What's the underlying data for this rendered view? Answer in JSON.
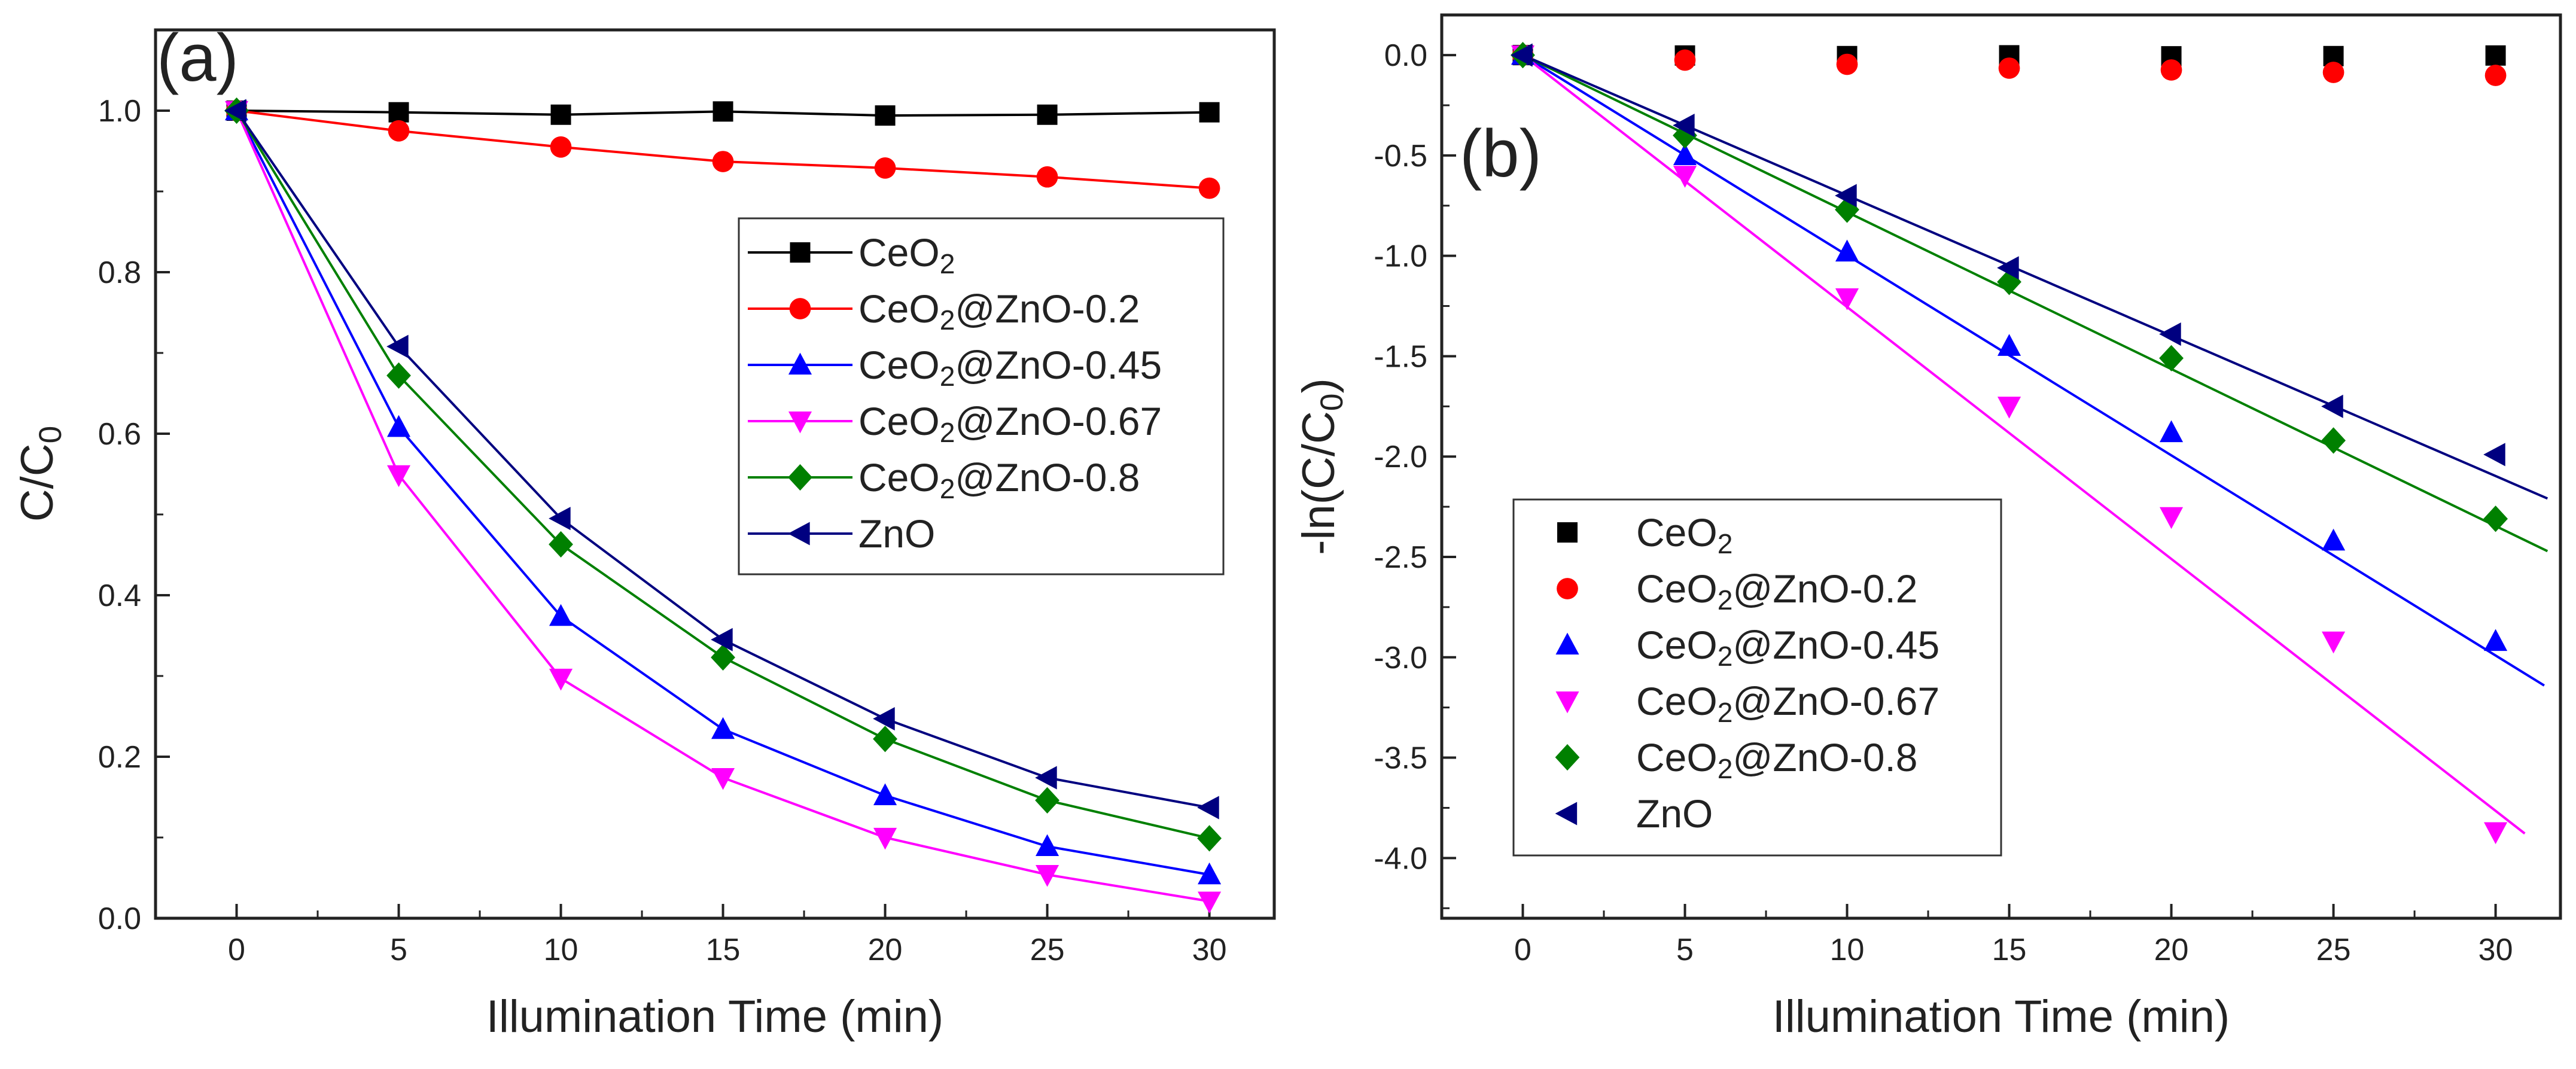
{
  "colors": {
    "CeO2": "#000000",
    "CeO2@ZnO-0.2": "#ff0000",
    "CeO2@ZnO-0.45": "#0000ff",
    "CeO2@ZnO-0.67": "#ff00ff",
    "CeO2@ZnO-0.8": "#008000",
    "ZnO": "#000080"
  },
  "chart_data": [
    {
      "type": "line",
      "panel_label": "(a)",
      "xlabel": "Illumination Time (min)",
      "ylabel": "C/C",
      "ylabel_sub": "0",
      "xlim": [
        -2.5,
        32
      ],
      "ylim": [
        0.0,
        1.1
      ],
      "xticks": [
        0,
        5,
        10,
        15,
        20,
        25,
        30
      ],
      "xtick_labels": [
        "0",
        "5",
        "10",
        "15",
        "20",
        "25",
        "30"
      ],
      "yticks": [
        0.0,
        0.2,
        0.4,
        0.6,
        0.8,
        1.0
      ],
      "ytick_labels": [
        "0.0",
        "0.2",
        "0.4",
        "0.6",
        "0.8",
        "1.0"
      ],
      "legend_position": "center-right",
      "x": [
        0,
        5,
        10,
        15,
        20,
        25,
        30
      ],
      "series": [
        {
          "name": "CeO2",
          "label_main": "CeO",
          "label_sub": "2",
          "label_rest": "",
          "marker": "square",
          "color_key": "CeO2",
          "line": "connect",
          "values": [
            1.0,
            0.998,
            0.995,
            0.999,
            0.994,
            0.995,
            0.998
          ]
        },
        {
          "name": "CeO2@ZnO-0.2",
          "label_main": "CeO",
          "label_sub": "2",
          "label_rest": "@ZnO-0.2",
          "marker": "circle",
          "color_key": "CeO2@ZnO-0.2",
          "line": "connect",
          "values": [
            1.0,
            0.975,
            0.955,
            0.937,
            0.929,
            0.918,
            0.904
          ]
        },
        {
          "name": "CeO2@ZnO-0.45",
          "label_main": "CeO",
          "label_sub": "2",
          "label_rest": "@ZnO-0.45",
          "marker": "triangle-up",
          "color_key": "CeO2@ZnO-0.45",
          "line": "connect",
          "values": [
            1.0,
            0.608,
            0.374,
            0.234,
            0.152,
            0.089,
            0.054
          ]
        },
        {
          "name": "CeO2@ZnO-0.67",
          "label_main": "CeO",
          "label_sub": "2",
          "label_rest": "@ZnO-0.67",
          "marker": "triangle-down",
          "color_key": "CeO2@ZnO-0.67",
          "line": "connect",
          "values": [
            1.0,
            0.549,
            0.297,
            0.174,
            0.1,
            0.054,
            0.021
          ]
        },
        {
          "name": "CeO2@ZnO-0.8",
          "label_main": "CeO",
          "label_sub": "2",
          "label_rest": "@ZnO-0.8",
          "marker": "diamond",
          "color_key": "CeO2@ZnO-0.8",
          "line": "connect",
          "values": [
            1.0,
            0.672,
            0.463,
            0.323,
            0.222,
            0.146,
            0.099
          ]
        },
        {
          "name": "ZnO",
          "label_main": "ZnO",
          "label_sub": "",
          "label_rest": "",
          "marker": "triangle-left",
          "color_key": "ZnO",
          "line": "connect",
          "values": [
            1.0,
            0.708,
            0.495,
            0.345,
            0.247,
            0.174,
            0.137
          ]
        }
      ]
    },
    {
      "type": "scatter",
      "panel_label": "(b)",
      "xlabel": "Illumination Time (min)",
      "ylabel": "-ln(C/C",
      "ylabel_sub": "0",
      "ylabel_end": ")",
      "xlim": [
        -2.5,
        32
      ],
      "ylim": [
        -4.3,
        0.2
      ],
      "xticks": [
        0,
        5,
        10,
        15,
        20,
        25,
        30
      ],
      "xtick_labels": [
        "0",
        "5",
        "10",
        "15",
        "20",
        "25",
        "30"
      ],
      "yticks": [
        0.0,
        -0.5,
        -1.0,
        -1.5,
        -2.0,
        -2.5,
        -3.0,
        -3.5,
        -4.0
      ],
      "ytick_labels": [
        "0.0",
        "-0.5",
        "-1.0",
        "-1.5",
        "-2.0",
        "-2.5",
        "-3.0",
        "-3.5",
        "-4.0"
      ],
      "legend_position": "lower-left",
      "x": [
        0,
        5,
        10,
        15,
        20,
        25,
        30
      ],
      "series": [
        {
          "name": "CeO2",
          "label_main": "CeO",
          "label_sub": "2",
          "label_rest": "",
          "marker": "square",
          "color_key": "CeO2",
          "values": [
            0.0,
            -0.002,
            -0.005,
            -0.001,
            -0.006,
            -0.005,
            -0.002
          ],
          "fit": null
        },
        {
          "name": "CeO2@ZnO-0.2",
          "label_main": "CeO",
          "label_sub": "2",
          "label_rest": "@ZnO-0.2",
          "marker": "circle",
          "color_key": "CeO2@ZnO-0.2",
          "values": [
            0.0,
            -0.025,
            -0.046,
            -0.065,
            -0.074,
            -0.086,
            -0.101
          ],
          "fit": null
        },
        {
          "name": "CeO2@ZnO-0.45",
          "label_main": "CeO",
          "label_sub": "2",
          "label_rest": "@ZnO-0.45",
          "marker": "triangle-up",
          "color_key": "CeO2@ZnO-0.45",
          "values": [
            0.0,
            -0.5,
            -0.98,
            -1.45,
            -1.88,
            -2.42,
            -2.92
          ],
          "fit": {
            "slope": -0.0997,
            "x_range": [
              0,
              31.5
            ]
          }
        },
        {
          "name": "CeO2@ZnO-0.67",
          "label_main": "CeO",
          "label_sub": "2",
          "label_rest": "@ZnO-0.67",
          "marker": "triangle-down",
          "color_key": "CeO2@ZnO-0.67",
          "values": [
            0.0,
            -0.6,
            -1.21,
            -1.75,
            -2.3,
            -2.92,
            -3.87
          ],
          "fit": {
            "slope": -0.1255,
            "x_range": [
              0,
              30.9
            ]
          }
        },
        {
          "name": "CeO2@ZnO-0.8",
          "label_main": "CeO",
          "label_sub": "2",
          "label_rest": "@ZnO-0.8",
          "marker": "diamond",
          "color_key": "CeO2@ZnO-0.8",
          "values": [
            0.0,
            -0.4,
            -0.77,
            -1.13,
            -1.51,
            -1.92,
            -2.31
          ],
          "fit": {
            "slope": -0.0782,
            "x_range": [
              0,
              31.6
            ]
          }
        },
        {
          "name": "ZnO",
          "label_main": "ZnO",
          "label_sub": "",
          "label_rest": "",
          "marker": "triangle-left",
          "color_key": "ZnO",
          "values": [
            0.0,
            -0.35,
            -0.7,
            -1.06,
            -1.39,
            -1.75,
            -1.99
          ],
          "fit": {
            "slope": -0.0699,
            "x_range": [
              0,
              31.6
            ]
          }
        }
      ]
    }
  ]
}
